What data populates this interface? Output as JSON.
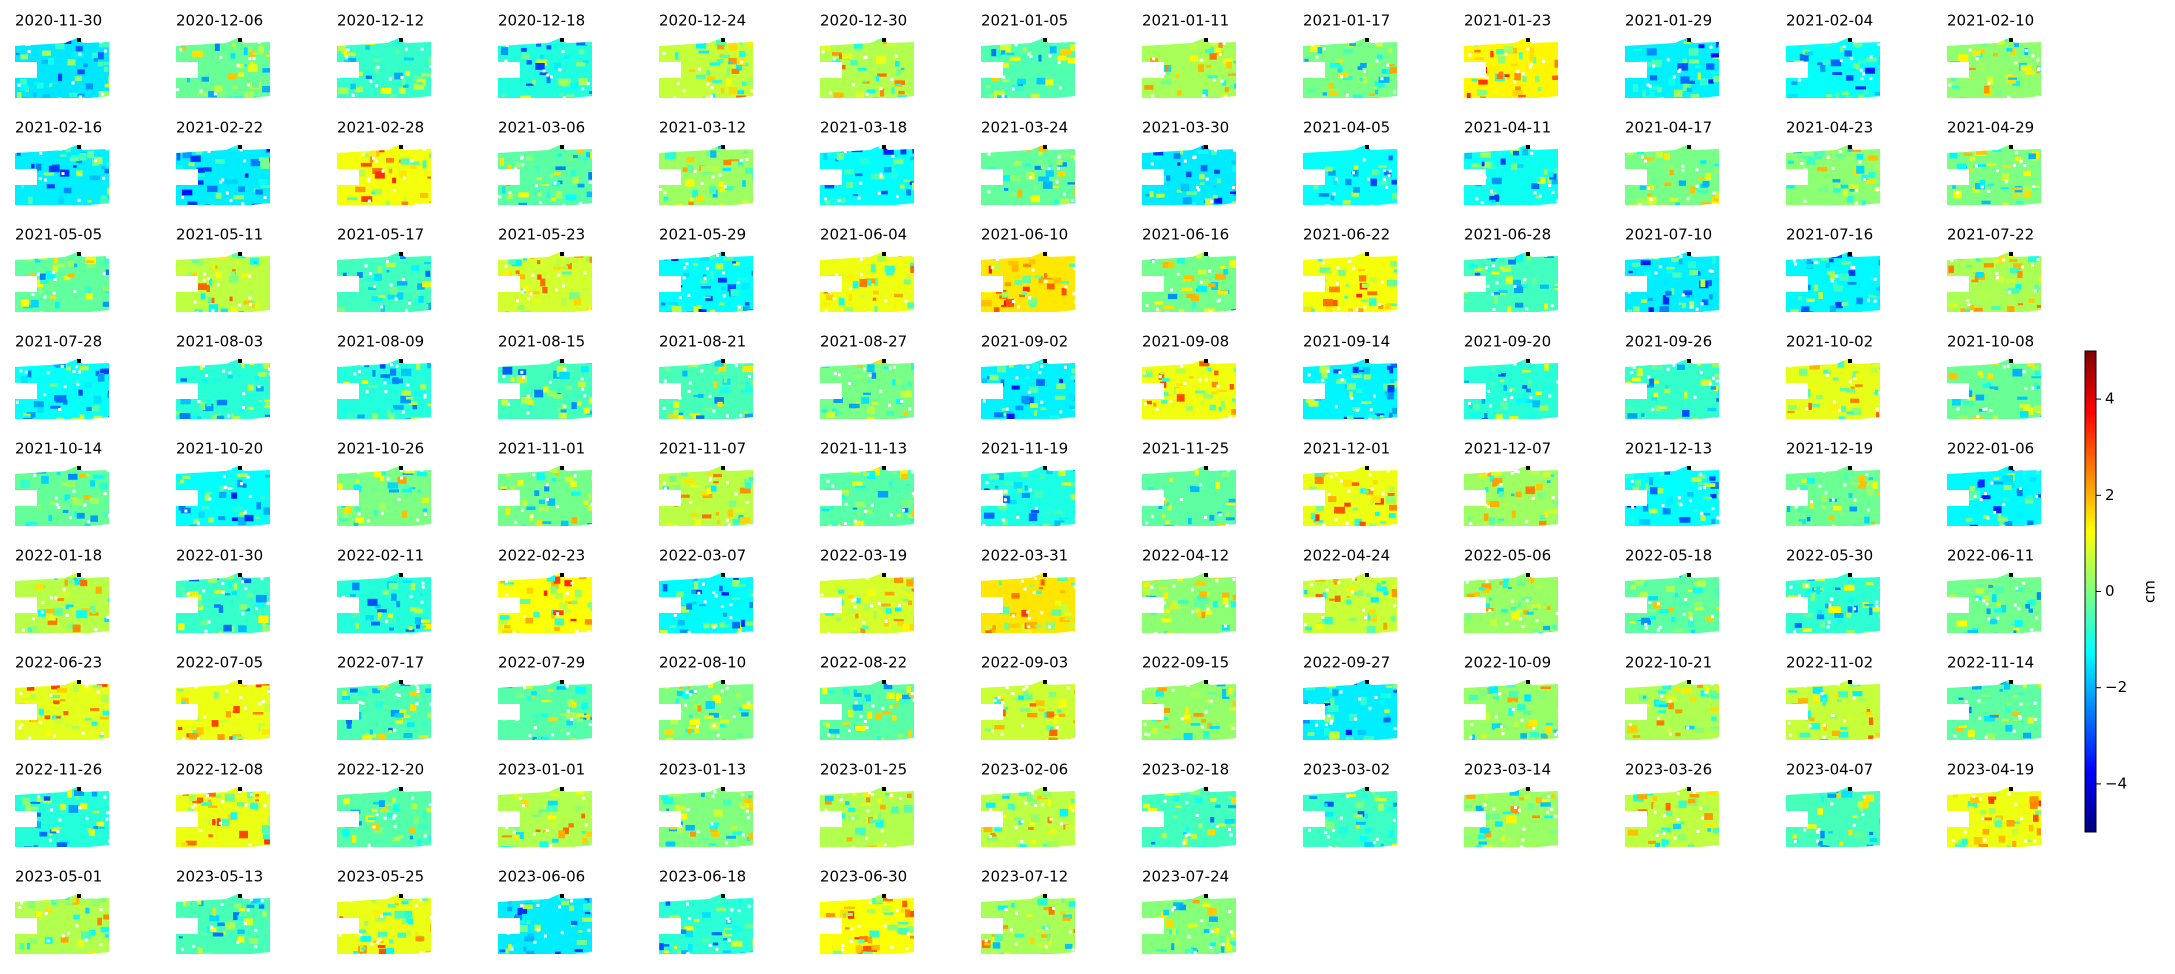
{
  "chart_data": {
    "type": "map-grid",
    "panel_titles": [
      "2020-11-30",
      "2020-12-06",
      "2020-12-12",
      "2020-12-18",
      "2020-12-24",
      "2020-12-30",
      "2021-01-05",
      "2021-01-11",
      "2021-01-17",
      "2021-01-23",
      "2021-01-29",
      "2021-02-04",
      "2021-02-10",
      "2021-02-16",
      "2021-02-22",
      "2021-02-28",
      "2021-03-06",
      "2021-03-12",
      "2021-03-18",
      "2021-03-24",
      "2021-03-30",
      "2021-04-05",
      "2021-04-11",
      "2021-04-17",
      "2021-04-23",
      "2021-04-29",
      "2021-05-05",
      "2021-05-11",
      "2021-05-17",
      "2021-05-23",
      "2021-05-29",
      "2021-06-04",
      "2021-06-10",
      "2021-06-16",
      "2021-06-22",
      "2021-06-28",
      "2021-07-10",
      "2021-07-16",
      "2021-07-22",
      "2021-07-28",
      "2021-08-03",
      "2021-08-09",
      "2021-08-15",
      "2021-08-21",
      "2021-08-27",
      "2021-09-02",
      "2021-09-08",
      "2021-09-14",
      "2021-09-20",
      "2021-09-26",
      "2021-10-02",
      "2021-10-08",
      "2021-10-14",
      "2021-10-20",
      "2021-10-26",
      "2021-11-01",
      "2021-11-07",
      "2021-11-13",
      "2021-11-19",
      "2021-11-25",
      "2021-12-01",
      "2021-12-07",
      "2021-12-13",
      "2021-12-19",
      "2022-01-06",
      "2022-01-18",
      "2022-01-30",
      "2022-02-11",
      "2022-02-23",
      "2022-03-07",
      "2022-03-19",
      "2022-03-31",
      "2022-04-12",
      "2022-04-24",
      "2022-05-06",
      "2022-05-18",
      "2022-05-30",
      "2022-06-11",
      "2022-06-23",
      "2022-07-05",
      "2022-07-17",
      "2022-07-29",
      "2022-08-10",
      "2022-08-22",
      "2022-09-03",
      "2022-09-15",
      "2022-09-27",
      "2022-10-09",
      "2022-10-21",
      "2022-11-02",
      "2022-11-14",
      "2022-11-26",
      "2022-12-08",
      "2022-12-20",
      "2023-01-01",
      "2023-01-13",
      "2023-01-25",
      "2023-02-06",
      "2023-02-18",
      "2023-03-02",
      "2023-03-14",
      "2023-03-26",
      "2023-04-07",
      "2023-04-19",
      "2023-05-01",
      "2023-05-13",
      "2023-05-25",
      "2023-06-06",
      "2023-06-18",
      "2023-06-30",
      "2023-07-12",
      "2023-07-24"
    ],
    "colorbar": {
      "label": "cm",
      "colormap": "jet",
      "clim": [
        -5,
        5
      ],
      "ticks": [
        {
          "value": -4,
          "label": "−4"
        },
        {
          "value": -2,
          "label": "−2"
        },
        0,
        2,
        4
      ]
    }
  }
}
